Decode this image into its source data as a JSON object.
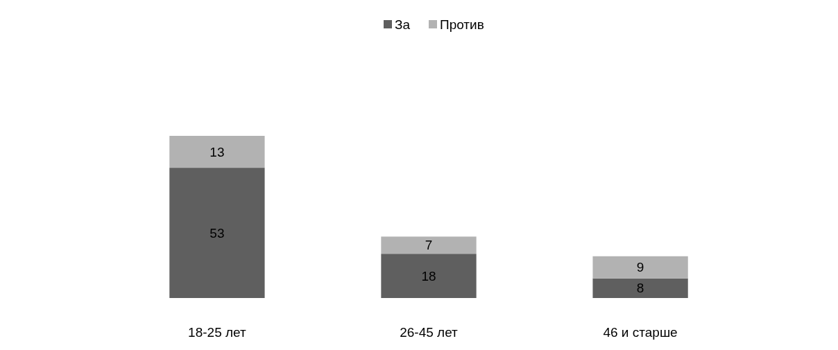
{
  "chart_data": {
    "type": "bar",
    "stacked": true,
    "categories": [
      "18-25 лет",
      "26-45 лет",
      "46 и старше"
    ],
    "series": [
      {
        "name": "За",
        "color": "#5f5f5f",
        "values": [
          53,
          18,
          8
        ]
      },
      {
        "name": "Против",
        "color": "#b2b2b2",
        "values": [
          13,
          7,
          9
        ]
      }
    ],
    "data_labels": true,
    "legend": "top",
    "grid": false
  }
}
